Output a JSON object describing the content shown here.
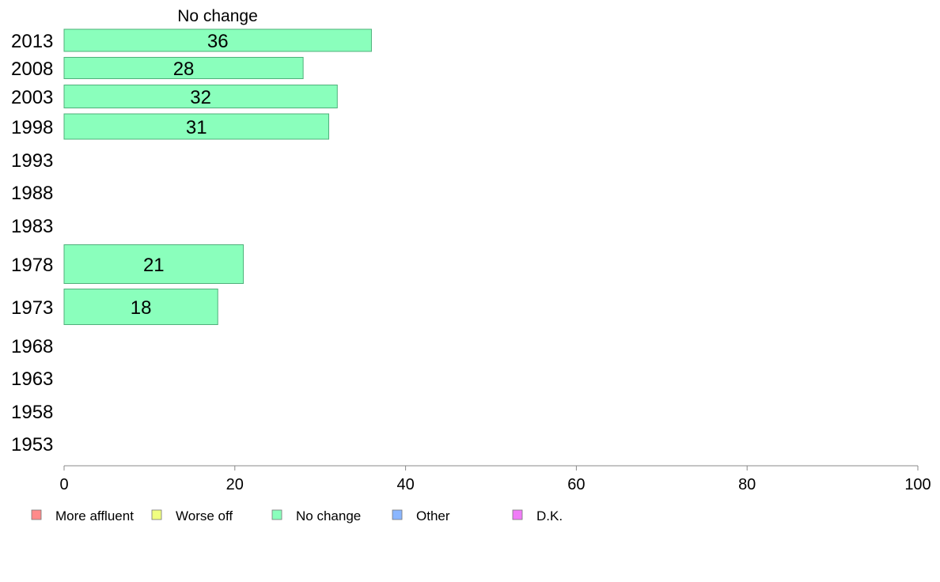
{
  "chart_data": {
    "type": "bar",
    "orientation": "horizontal",
    "title": "",
    "column_header": "No change",
    "categories": [
      "2013",
      "2008",
      "2003",
      "1998",
      "1993",
      "1988",
      "1983",
      "1978",
      "1973",
      "1968",
      "1963",
      "1958",
      "1953"
    ],
    "series": [
      {
        "name": "More affluent",
        "color": "#ff8a8a",
        "values": [
          null,
          null,
          null,
          null,
          null,
          null,
          null,
          null,
          null,
          null,
          null,
          null,
          null
        ]
      },
      {
        "name": "Worse off",
        "color": "#f0ff80",
        "values": [
          null,
          null,
          null,
          null,
          null,
          null,
          null,
          null,
          null,
          null,
          null,
          null,
          null
        ]
      },
      {
        "name": "No change",
        "color": "#8affbc",
        "values": [
          36,
          28,
          32,
          31,
          null,
          null,
          null,
          21,
          18,
          null,
          null,
          null,
          null
        ]
      },
      {
        "name": "Other",
        "color": "#8ab6ff",
        "values": [
          null,
          null,
          null,
          null,
          null,
          null,
          null,
          null,
          null,
          null,
          null,
          null,
          null
        ]
      },
      {
        "name": "D.K.",
        "color": "#f07cf7",
        "values": [
          null,
          null,
          null,
          null,
          null,
          null,
          null,
          null,
          null,
          null,
          null,
          null,
          null
        ]
      }
    ],
    "xlim": [
      0,
      100
    ],
    "xticks": [
      0,
      20,
      40,
      60,
      80,
      100
    ],
    "xlabel": "",
    "ylabel": "",
    "grid": false,
    "legend_position": "bottom"
  }
}
